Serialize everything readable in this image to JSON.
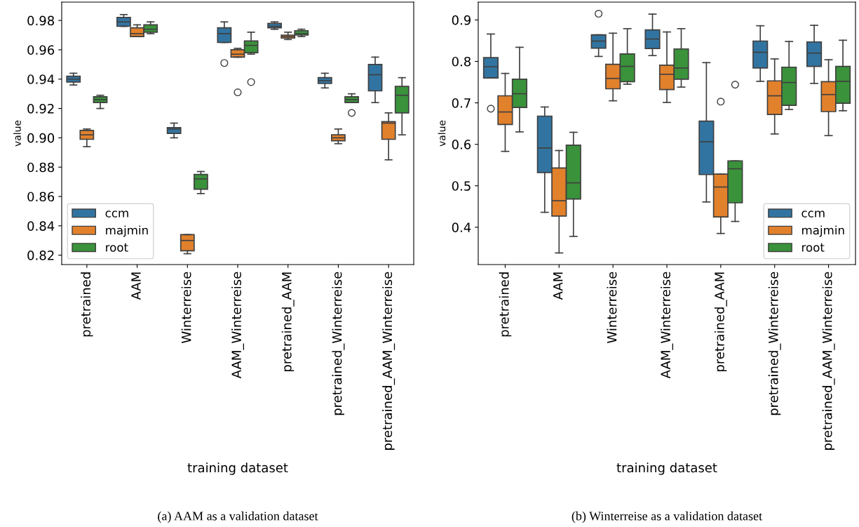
{
  "chart_data": [
    {
      "type": "box",
      "categories": [
        "pretrained",
        "AAM",
        "Winterreise",
        "AAM_Winterreise",
        "pretrained_AAM",
        "pretrained_Winterreise",
        "pretrained_AAM_Winterreise"
      ],
      "xlabel": "training dataset",
      "ylabel": "value",
      "ylim": [
        0.8136,
        0.9925
      ],
      "yticks": [
        0.82,
        0.84,
        0.86,
        0.88,
        {
          "value": 0.9,
          "label": "0.90"
        },
        0.92,
        0.94,
        0.96,
        0.98
      ],
      "legend": "bottom left",
      "grid": false,
      "annotations": [
        "(a) AAM as a validation dataset"
      ],
      "series": [
        {
          "name": "ccm",
          "color": "#3274a1",
          "boxes": [
            {
              "low": 0.936,
              "q1": 0.938,
              "median": 0.94,
              "q3": 0.942,
              "high": 0.944
            },
            {
              "low": 0.976,
              "q1": 0.976,
              "median": 0.979,
              "q3": 0.982,
              "high": 0.984
            },
            {
              "low": 0.9,
              "q1": 0.903,
              "median": 0.906,
              "q3": 0.907,
              "high": 0.91
            },
            {
              "low": 0.965,
              "q1": 0.965,
              "median": 0.971,
              "q3": 0.975,
              "high": 0.979,
              "outliers": [
                0.951
              ]
            },
            {
              "low": 0.974,
              "q1": 0.975,
              "median": 0.976,
              "q3": 0.978,
              "high": 0.979
            },
            {
              "low": 0.934,
              "q1": 0.937,
              "median": 0.939,
              "q3": 0.941,
              "high": 0.944
            },
            {
              "low": 0.924,
              "q1": 0.932,
              "median": 0.943,
              "q3": 0.95,
              "high": 0.955
            }
          ]
        },
        {
          "name": "majmin",
          "color": "#e1812c",
          "boxes": [
            {
              "low": 0.894,
              "q1": 0.899,
              "median": 0.902,
              "q3": 0.905,
              "high": 0.906
            },
            {
              "low": 0.969,
              "q1": 0.969,
              "median": 0.971,
              "q3": 0.975,
              "high": 0.977
            },
            {
              "low": 0.821,
              "q1": 0.823,
              "median": 0.83,
              "q3": 0.834,
              "high": 0.834
            },
            {
              "low": 0.955,
              "q1": 0.955,
              "median": 0.957,
              "q3": 0.96,
              "high": 0.961,
              "outliers": [
                0.931
              ]
            },
            {
              "low": 0.967,
              "q1": 0.968,
              "median": 0.969,
              "q3": 0.97,
              "high": 0.972
            },
            {
              "low": 0.896,
              "q1": 0.898,
              "median": 0.9,
              "q3": 0.902,
              "high": 0.906
            },
            {
              "low": 0.885,
              "q1": 0.899,
              "median": 0.91,
              "q3": 0.911,
              "high": 0.917
            }
          ]
        },
        {
          "name": "root",
          "color": "#3a923a",
          "boxes": [
            {
              "low": 0.92,
              "q1": 0.924,
              "median": 0.926,
              "q3": 0.928,
              "high": 0.929
            },
            {
              "low": 0.971,
              "q1": 0.972,
              "median": 0.974,
              "q3": 0.977,
              "high": 0.979
            },
            {
              "low": 0.862,
              "q1": 0.865,
              "median": 0.872,
              "q3": 0.875,
              "high": 0.877
            },
            {
              "low": 0.957,
              "q1": 0.958,
              "median": 0.963,
              "q3": 0.966,
              "high": 0.972,
              "outliers": [
                0.938
              ]
            },
            {
              "low": 0.969,
              "q1": 0.97,
              "median": 0.971,
              "q3": 0.973,
              "high": 0.974
            },
            {
              "low": 0.924,
              "q1": 0.924,
              "median": 0.926,
              "q3": 0.928,
              "high": 0.93,
              "outliers": [
                0.917
              ]
            },
            {
              "low": 0.902,
              "q1": 0.917,
              "median": 0.929,
              "q3": 0.935,
              "high": 0.941
            }
          ]
        }
      ]
    },
    {
      "type": "box",
      "categories": [
        "pretrained",
        "AAM",
        "Winterreise",
        "AAM_Winterreise",
        "pretrained_AAM",
        "pretrained_Winterreise",
        "pretrained_AAM_Winterreise"
      ],
      "xlabel": "training dataset",
      "ylabel": "value",
      "ylim": [
        0.31,
        0.943
      ],
      "yticks": [
        0.4,
        0.5,
        0.6,
        0.7,
        0.8,
        0.9
      ],
      "legend": "bottom right",
      "grid": false,
      "annotations": [
        "(b) Winterreise as a validation dataset"
      ],
      "series": [
        {
          "name": "ccm",
          "color": "#3274a1",
          "boxes": [
            {
              "low": 0.76,
              "q1": 0.76,
              "median": 0.787,
              "q3": 0.809,
              "high": 0.866,
              "outliers": [
                0.686
              ]
            },
            {
              "low": 0.436,
              "q1": 0.532,
              "median": 0.591,
              "q3": 0.668,
              "high": 0.69
            },
            {
              "low": 0.812,
              "q1": 0.832,
              "median": 0.849,
              "q3": 0.864,
              "high": 0.864,
              "outliers": [
                0.915
              ]
            },
            {
              "low": 0.814,
              "q1": 0.831,
              "median": 0.854,
              "q3": 0.876,
              "high": 0.914
            },
            {
              "low": 0.461,
              "q1": 0.527,
              "median": 0.606,
              "q3": 0.656,
              "high": 0.797
            },
            {
              "low": 0.752,
              "q1": 0.784,
              "median": 0.822,
              "q3": 0.849,
              "high": 0.886
            },
            {
              "low": 0.747,
              "q1": 0.788,
              "median": 0.82,
              "q3": 0.847,
              "high": 0.887
            }
          ]
        },
        {
          "name": "majmin",
          "color": "#e1812c",
          "boxes": [
            {
              "low": 0.583,
              "q1": 0.648,
              "median": 0.678,
              "q3": 0.717,
              "high": 0.771
            },
            {
              "low": 0.338,
              "q1": 0.427,
              "median": 0.464,
              "q3": 0.543,
              "high": 0.585
            },
            {
              "low": 0.705,
              "q1": 0.734,
              "median": 0.759,
              "q3": 0.793,
              "high": 0.868
            },
            {
              "low": 0.701,
              "q1": 0.732,
              "median": 0.769,
              "q3": 0.791,
              "high": 0.871
            },
            {
              "low": 0.385,
              "q1": 0.425,
              "median": 0.497,
              "q3": 0.528,
              "high": 0.528,
              "outliers": [
                0.703
              ]
            },
            {
              "low": 0.625,
              "q1": 0.672,
              "median": 0.717,
              "q3": 0.753,
              "high": 0.806
            },
            {
              "low": 0.621,
              "q1": 0.679,
              "median": 0.72,
              "q3": 0.751,
              "high": 0.804
            }
          ]
        },
        {
          "name": "root",
          "color": "#3a923a",
          "boxes": [
            {
              "low": 0.63,
              "q1": 0.689,
              "median": 0.722,
              "q3": 0.757,
              "high": 0.834
            },
            {
              "low": 0.378,
              "q1": 0.468,
              "median": 0.507,
              "q3": 0.598,
              "high": 0.629
            },
            {
              "low": 0.745,
              "q1": 0.751,
              "median": 0.788,
              "q3": 0.818,
              "high": 0.879
            },
            {
              "low": 0.738,
              "q1": 0.757,
              "median": 0.784,
              "q3": 0.83,
              "high": 0.879
            },
            {
              "low": 0.414,
              "q1": 0.459,
              "median": 0.541,
              "q3": 0.56,
              "high": 0.56,
              "outliers": [
                0.744
              ]
            },
            {
              "low": 0.684,
              "q1": 0.694,
              "median": 0.749,
              "q3": 0.786,
              "high": 0.848
            },
            {
              "low": 0.681,
              "q1": 0.699,
              "median": 0.752,
              "q3": 0.788,
              "high": 0.851
            }
          ]
        }
      ]
    }
  ]
}
